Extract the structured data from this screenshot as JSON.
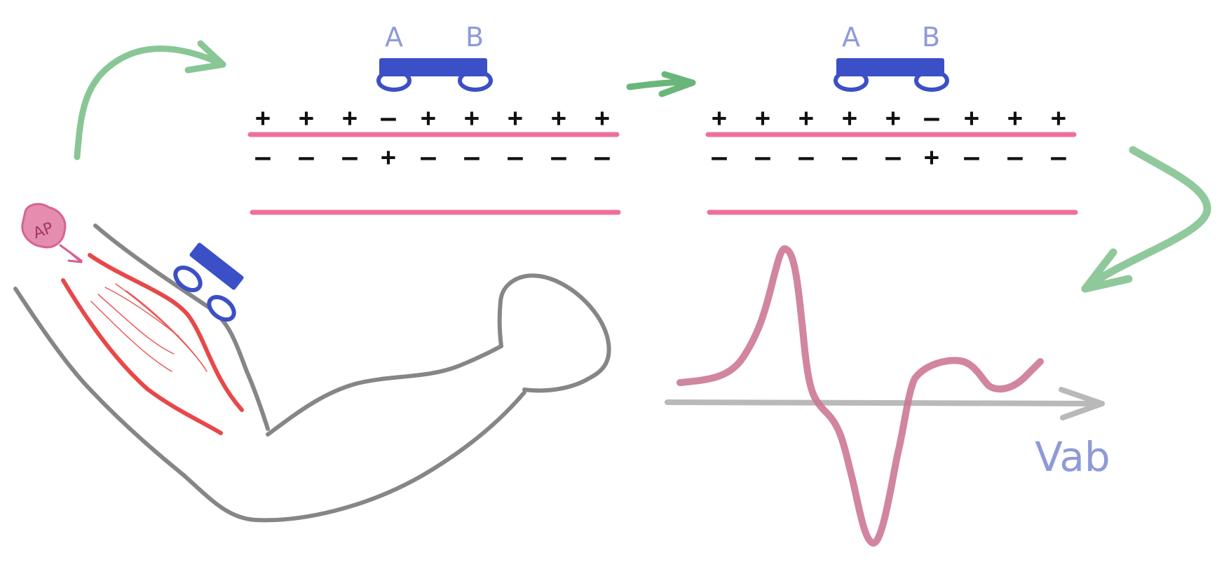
{
  "colors": {
    "electrode": "#3b4fc6",
    "membrane": "#ef6f9b",
    "arrow": "#7cc08a",
    "muscle": "#e84848",
    "limb": "#868686",
    "ap": "#e07aa0",
    "signal": "#cc7896",
    "axis": "#b9b9b9",
    "label": "#8e9ad8"
  },
  "ap_badge": {
    "text": "AP"
  },
  "panel_left": {
    "electrode_a_label": "A",
    "electrode_b_label": "B",
    "outside_signs": [
      "+",
      "+",
      "+",
      "–",
      "+",
      "+",
      "+",
      "+",
      "+"
    ],
    "inside_signs": [
      "–",
      "–",
      "–",
      "+",
      "–",
      "–",
      "–",
      "–",
      "–"
    ]
  },
  "panel_right": {
    "electrode_a_label": "A",
    "electrode_b_label": "B",
    "outside_signs": [
      "+",
      "+",
      "+",
      "+",
      "+",
      "–",
      "+",
      "+",
      "+"
    ],
    "inside_signs": [
      "–",
      "–",
      "–",
      "–",
      "–",
      "+",
      "–",
      "–",
      "–"
    ]
  },
  "signal": {
    "axis_label": "Vab"
  },
  "icons": {
    "flow": "curved-arrow-icon",
    "electrode": "electrode-pair-icon"
  }
}
